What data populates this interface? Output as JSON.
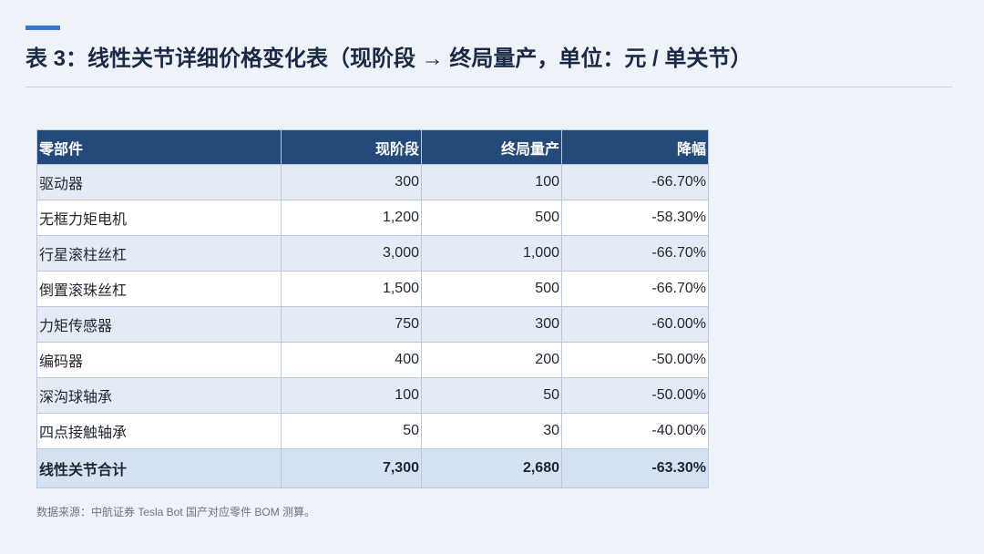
{
  "header": {
    "title": "表 3：线性关节详细价格变化表（现阶段 → 终局量产，单位：元 / 单关节）"
  },
  "table": {
    "columns": [
      "零部件",
      "现阶段",
      "终局量产",
      "降幅"
    ],
    "rows": [
      [
        "驱动器",
        "300",
        "100",
        "-66.70%"
      ],
      [
        "无框力矩电机",
        "1,200",
        "500",
        "-58.30%"
      ],
      [
        "行星滚柱丝杠",
        "3,000",
        "1,000",
        "-66.70%"
      ],
      [
        "倒置滚珠丝杠",
        "1,500",
        "500",
        "-66.70%"
      ],
      [
        "力矩传感器",
        "750",
        "300",
        "-60.00%"
      ],
      [
        "编码器",
        "400",
        "200",
        "-50.00%"
      ],
      [
        "深沟球轴承",
        "100",
        "50",
        "-50.00%"
      ],
      [
        "四点接触轴承",
        "50",
        "30",
        "-40.00%"
      ]
    ],
    "total": [
      "线性关节合计",
      "7,300",
      "2,680",
      "-63.30%"
    ]
  },
  "footer": {
    "source": "数据来源：中航证券 Tesla Bot 国产对应零件 BOM 测算。"
  }
}
